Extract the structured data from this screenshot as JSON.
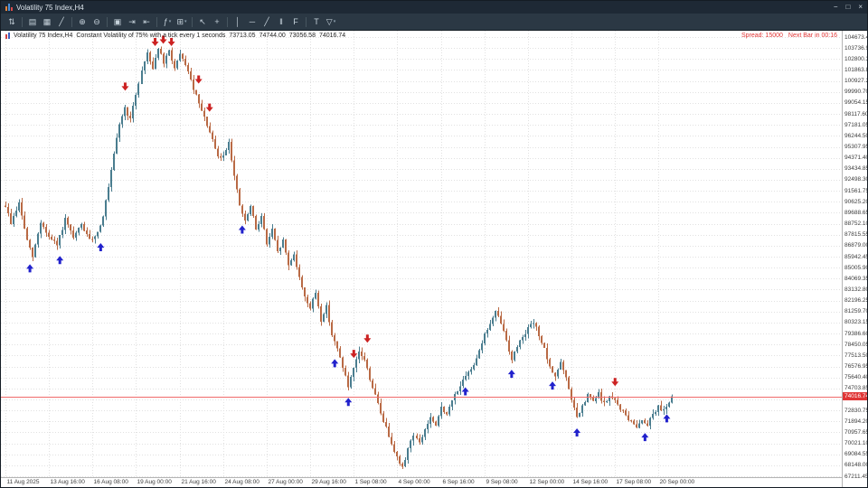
{
  "window": {
    "title": "Volatility 75 Index,H4",
    "controls": {
      "minimize": "−",
      "restore": "□",
      "close": "×"
    }
  },
  "toolbar": {
    "caret_glyph": "▾",
    "items": [
      {
        "name": "buy-sell-arrows-icon",
        "glyph": "⇅"
      },
      {
        "sep": true
      },
      {
        "name": "bars-chart-icon",
        "glyph": "▤"
      },
      {
        "name": "candlestick-chart-icon",
        "glyph": "▦"
      },
      {
        "name": "line-chart-icon",
        "glyph": "╱"
      },
      {
        "sep": true
      },
      {
        "name": "zoom-in-icon",
        "glyph": "⊕"
      },
      {
        "name": "zoom-out-icon",
        "glyph": "⊖"
      },
      {
        "sep": true
      },
      {
        "name": "tile-windows-icon",
        "glyph": "▣"
      },
      {
        "name": "auto-scroll-icon",
        "glyph": "⇥"
      },
      {
        "name": "chart-shift-icon",
        "glyph": "⇤"
      },
      {
        "sep": true
      },
      {
        "name": "indicators-icon",
        "glyph": "ƒ",
        "caret": true
      },
      {
        "name": "timeframes-icon",
        "glyph": "⊞",
        "caret": true
      },
      {
        "sep": true
      },
      {
        "name": "cursor-icon",
        "glyph": "↖"
      },
      {
        "name": "crosshair-icon",
        "glyph": "+"
      },
      {
        "sep": true
      },
      {
        "name": "vertical-line-icon",
        "glyph": "│"
      },
      {
        "name": "horizontal-line-icon",
        "glyph": "─"
      },
      {
        "name": "trendline-icon",
        "glyph": "╱"
      },
      {
        "name": "channel-icon",
        "glyph": "‖"
      },
      {
        "name": "fibonacci-icon",
        "glyph": "F"
      },
      {
        "sep": true
      },
      {
        "name": "text-icon",
        "glyph": "T"
      },
      {
        "name": "shapes-icon",
        "glyph": "▽",
        "caret": true
      }
    ]
  },
  "chart": {
    "info_symbol": "Volatility 75 Index,H4",
    "info_description": "Constant Volatility of 75% with a tick every 1 seconds",
    "ohlc": {
      "open": "73713.05",
      "high": "74744.00",
      "low": "73056.58",
      "close": "74016.74"
    },
    "spread_text": "Spread: 15000",
    "next_bar_text": "Next Bar in 00:16"
  },
  "chart_data": {
    "type": "candlestick",
    "symbol": "Volatility 75 Index",
    "timeframe": "H4",
    "title": "Volatility 75 Index,H4",
    "y_axis": {
      "first_label": 104673.45,
      "step": 936.55,
      "count": 41
    },
    "x_labels": [
      "11 Aug 2025",
      "13 Aug 16:00",
      "16 Aug 08:00",
      "19 Aug 00:00",
      "21 Aug 16:00",
      "24 Aug 08:00",
      "27 Aug 00:00",
      "29 Aug 16:00",
      "1 Sep 08:00",
      "4 Sep 00:00",
      "6 Sep 16:00",
      "9 Sep 08:00",
      "12 Sep 00:00",
      "14 Sep 16:00",
      "17 Sep 08:00",
      "20 Sep 00:00"
    ],
    "bars_per_label": 16,
    "total_bars": 246,
    "current_price": 74016.74,
    "seed": 9,
    "colors": {
      "bull": "#4a7d8f",
      "bear": "#b96a45",
      "grid": "#e1e1e1",
      "bid_line": "#f06a6a",
      "bid_tag": "#e03636",
      "signal_up": "#2222cc",
      "signal_down": "#cc2222"
    },
    "price_path": [
      [
        0,
        90300
      ],
      [
        2,
        88800
      ],
      [
        5,
        90500
      ],
      [
        8,
        87300
      ],
      [
        10,
        85900
      ],
      [
        13,
        88900
      ],
      [
        16,
        87600
      ],
      [
        19,
        86900
      ],
      [
        22,
        89100
      ],
      [
        25,
        87500
      ],
      [
        28,
        88700
      ],
      [
        31,
        87300
      ],
      [
        34,
        88000
      ],
      [
        36,
        89500
      ],
      [
        38,
        91800
      ],
      [
        40,
        94600
      ],
      [
        42,
        97300
      ],
      [
        44,
        98600
      ],
      [
        46,
        97600
      ],
      [
        48,
        99800
      ],
      [
        50,
        101800
      ],
      [
        52,
        103400
      ],
      [
        54,
        102000
      ],
      [
        56,
        103800
      ],
      [
        58,
        102400
      ],
      [
        60,
        103500
      ],
      [
        62,
        102000
      ],
      [
        64,
        103100
      ],
      [
        66,
        102400
      ],
      [
        68,
        100900
      ],
      [
        70,
        99600
      ],
      [
        72,
        98300
      ],
      [
        74,
        97200
      ],
      [
        76,
        95800
      ],
      [
        78,
        94400
      ],
      [
        80,
        94500
      ],
      [
        82,
        95800
      ],
      [
        84,
        92800
      ],
      [
        86,
        90300
      ],
      [
        88,
        88900
      ],
      [
        90,
        90200
      ],
      [
        92,
        88300
      ],
      [
        94,
        89400
      ],
      [
        96,
        87000
      ],
      [
        98,
        88200
      ],
      [
        100,
        86300
      ],
      [
        102,
        87300
      ],
      [
        104,
        85200
      ],
      [
        106,
        86200
      ],
      [
        108,
        84100
      ],
      [
        110,
        82600
      ],
      [
        112,
        81500
      ],
      [
        114,
        82900
      ],
      [
        116,
        80500
      ],
      [
        118,
        81700
      ],
      [
        120,
        79300
      ],
      [
        122,
        78000
      ],
      [
        124,
        76600
      ],
      [
        126,
        74800
      ],
      [
        128,
        76300
      ],
      [
        130,
        77800
      ],
      [
        132,
        77200
      ],
      [
        134,
        75500
      ],
      [
        136,
        74100
      ],
      [
        138,
        72600
      ],
      [
        140,
        71300
      ],
      [
        142,
        70100
      ],
      [
        144,
        68800
      ],
      [
        146,
        67900
      ],
      [
        148,
        69600
      ],
      [
        150,
        70800
      ],
      [
        152,
        70000
      ],
      [
        154,
        71200
      ],
      [
        156,
        72200
      ],
      [
        158,
        71400
      ],
      [
        160,
        73200
      ],
      [
        162,
        72400
      ],
      [
        164,
        73700
      ],
      [
        166,
        74600
      ],
      [
        168,
        75300
      ],
      [
        170,
        76000
      ],
      [
        172,
        76800
      ],
      [
        174,
        78000
      ],
      [
        176,
        79300
      ],
      [
        178,
        80200
      ],
      [
        180,
        81200
      ],
      [
        182,
        80300
      ],
      [
        184,
        78800
      ],
      [
        186,
        77200
      ],
      [
        188,
        78300
      ],
      [
        190,
        79200
      ],
      [
        192,
        79800
      ],
      [
        194,
        80300
      ],
      [
        196,
        79300
      ],
      [
        198,
        78000
      ],
      [
        200,
        76400
      ],
      [
        202,
        75800
      ],
      [
        204,
        76900
      ],
      [
        206,
        75500
      ],
      [
        208,
        73800
      ],
      [
        210,
        72200
      ],
      [
        212,
        73100
      ],
      [
        214,
        74100
      ],
      [
        216,
        73600
      ],
      [
        218,
        74200
      ],
      [
        220,
        73400
      ],
      [
        222,
        74000
      ],
      [
        224,
        73600
      ],
      [
        226,
        73000
      ],
      [
        228,
        72400
      ],
      [
        230,
        71800
      ],
      [
        232,
        71500
      ],
      [
        234,
        72000
      ],
      [
        236,
        71700
      ],
      [
        238,
        72600
      ],
      [
        240,
        73100
      ],
      [
        242,
        72900
      ],
      [
        244,
        73600
      ],
      [
        245,
        74016.74
      ]
    ],
    "signals": {
      "up": [
        [
          9,
          85300
        ],
        [
          20,
          86000
        ],
        [
          35,
          87100
        ],
        [
          87,
          88600
        ],
        [
          121,
          77200
        ],
        [
          126,
          73900
        ],
        [
          169,
          74800
        ],
        [
          186,
          76300
        ],
        [
          201,
          75300
        ],
        [
          210,
          71300
        ],
        [
          235,
          70900
        ],
        [
          243,
          72500
        ]
      ],
      "down": [
        [
          44,
          100100
        ],
        [
          55,
          103900
        ],
        [
          58,
          104100
        ],
        [
          61,
          103900
        ],
        [
          71,
          100700
        ],
        [
          75,
          98300
        ],
        [
          128,
          77300
        ],
        [
          133,
          78600
        ],
        [
          224,
          74900
        ]
      ]
    }
  }
}
